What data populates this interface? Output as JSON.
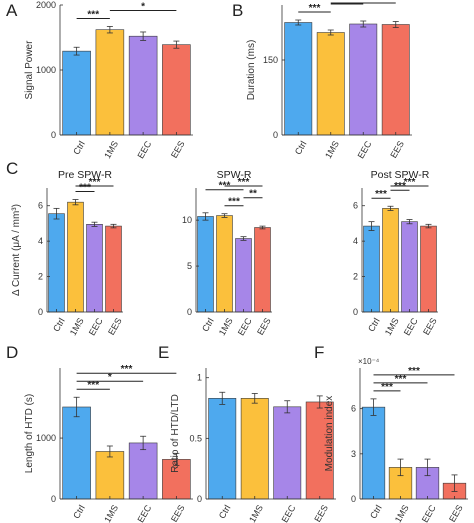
{
  "colors": {
    "Ctrl": "#4ea9ee",
    "1MS": "#fbc03c",
    "EEC": "#a686e8",
    "EES": "#f2705e"
  },
  "chart_data": [
    {
      "panel_letter": "A",
      "type": "bar",
      "title": "",
      "categories": [
        "Ctrl",
        "1MS",
        "EEC",
        "EES"
      ],
      "values": [
        1290,
        1620,
        1520,
        1390
      ],
      "errors": [
        60,
        50,
        65,
        55
      ],
      "ylabel": "Signal Power",
      "ylim": [
        0,
        2000
      ],
      "yticks": [
        0,
        1000,
        2000
      ],
      "ytick_labels": [
        "0",
        "1000",
        "2000"
      ],
      "exponent_label": "",
      "significance": [
        {
          "from": 0,
          "to": 1,
          "label": "***"
        },
        {
          "from": 1,
          "to": 3,
          "label": "*"
        }
      ]
    },
    {
      "panel_letter": "B",
      "type": "bar",
      "title": "",
      "categories": [
        "Ctrl",
        "1MS",
        "EEC",
        "EES"
      ],
      "values": [
        225,
        205,
        222,
        221
      ],
      "errors": [
        5,
        5,
        6,
        6
      ],
      "ylabel": "Duration (ms)",
      "ylim": [
        0,
        260
      ],
      "yticks": [
        0,
        150
      ],
      "ytick_labels": [
        "0",
        "150"
      ],
      "exponent_label": "",
      "significance": [
        {
          "from": 0,
          "to": 1,
          "label": "***"
        },
        {
          "from": 1,
          "to": 2,
          "label": "**"
        },
        {
          "from": 1,
          "to": 3,
          "label": "**"
        }
      ]
    },
    {
      "panel_letter": "C",
      "type": "bar",
      "title": "Pre SPW-R",
      "categories": [
        "Ctrl",
        "1MS",
        "EEC",
        "EES"
      ],
      "values": [
        5.55,
        6.2,
        4.95,
        4.85
      ],
      "errors": [
        0.3,
        0.15,
        0.12,
        0.1
      ],
      "ylabel": "Δ Current (μA / mm³)",
      "ylim": [
        0,
        7
      ],
      "yticks": [
        0,
        2,
        4,
        6
      ],
      "ytick_labels": [
        "0",
        "2",
        "4",
        "6"
      ],
      "exponent_label": "",
      "significance": [
        {
          "from": 1,
          "to": 2,
          "label": "***"
        },
        {
          "from": 1,
          "to": 3,
          "label": "***"
        }
      ]
    },
    {
      "panel_letter": "",
      "type": "bar",
      "title": "SPW-R",
      "categories": [
        "Ctrl",
        "1MS",
        "EEC",
        "EES"
      ],
      "values": [
        10.4,
        10.5,
        8.0,
        9.2
      ],
      "errors": [
        0.4,
        0.2,
        0.2,
        0.15
      ],
      "ylabel": "",
      "ylim": [
        0,
        13.5
      ],
      "yticks": [
        0,
        5,
        10
      ],
      "ytick_labels": [
        "0",
        "5",
        "10"
      ],
      "exponent_label": "",
      "significance": [
        {
          "from": 0,
          "to": 2,
          "label": "***"
        },
        {
          "from": 1,
          "to": 2,
          "label": "***"
        },
        {
          "from": 1,
          "to": 3,
          "label": "***"
        },
        {
          "from": 2,
          "to": 3,
          "label": "**"
        }
      ]
    },
    {
      "panel_letter": "",
      "type": "bar",
      "title": "Post SPW-R",
      "categories": [
        "Ctrl",
        "1MS",
        "EEC",
        "EES"
      ],
      "values": [
        4.85,
        5.85,
        5.1,
        4.85
      ],
      "errors": [
        0.25,
        0.12,
        0.12,
        0.1
      ],
      "ylabel": "",
      "ylim": [
        0,
        7
      ],
      "yticks": [
        0,
        2,
        4,
        6
      ],
      "ytick_labels": [
        "0",
        "2",
        "4",
        "6"
      ],
      "exponent_label": "",
      "significance": [
        {
          "from": 0,
          "to": 1,
          "label": "***"
        },
        {
          "from": 1,
          "to": 2,
          "label": "***"
        },
        {
          "from": 1,
          "to": 3,
          "label": "***"
        }
      ]
    },
    {
      "panel_letter": "D",
      "type": "bar",
      "title": "",
      "categories": [
        "Ctrl",
        "1MS",
        "EEC",
        "EES"
      ],
      "values": [
        1510,
        780,
        920,
        650
      ],
      "errors": [
        160,
        90,
        110,
        100
      ],
      "ylabel": "Length of HTD (s)",
      "ylim": [
        0,
        2150
      ],
      "yticks": [
        0,
        1000
      ],
      "ytick_labels": [
        "0",
        "1000"
      ],
      "exponent_label": "",
      "significance": [
        {
          "from": 0,
          "to": 1,
          "label": "***"
        },
        {
          "from": 0,
          "to": 2,
          "label": "*"
        },
        {
          "from": 0,
          "to": 3,
          "label": "***"
        }
      ]
    },
    {
      "panel_letter": "E",
      "type": "bar",
      "title": "",
      "categories": [
        "Ctrl",
        "1MS",
        "EEC",
        "EES"
      ],
      "values": [
        0.83,
        0.83,
        0.76,
        0.8
      ],
      "errors": [
        0.05,
        0.04,
        0.05,
        0.05
      ],
      "ylabel": "Ratio of HTD/LTD",
      "ylim": [
        0,
        1.08
      ],
      "yticks": [
        0,
        0.5,
        1
      ],
      "ytick_labels": [
        "0",
        "0.5",
        "1"
      ],
      "exponent_label": "",
      "significance": []
    },
    {
      "panel_letter": "F",
      "type": "bar",
      "title": "",
      "categories": [
        "Ctrl",
        "1MS",
        "EEC",
        "EES"
      ],
      "values": [
        6.1,
        2.1,
        2.1,
        1.05
      ],
      "errors": [
        0.55,
        0.55,
        0.55,
        0.55
      ],
      "ylabel": "Modulation index",
      "ylim": [
        0,
        8.7
      ],
      "yticks": [
        0,
        3,
        6
      ],
      "ytick_labels": [
        "0",
        "3",
        "6"
      ],
      "exponent_label": "×10⁻⁴",
      "significance": [
        {
          "from": 0,
          "to": 1,
          "label": "***"
        },
        {
          "from": 0,
          "to": 2,
          "label": "***"
        },
        {
          "from": 0,
          "to": 3,
          "label": "***"
        }
      ]
    }
  ]
}
